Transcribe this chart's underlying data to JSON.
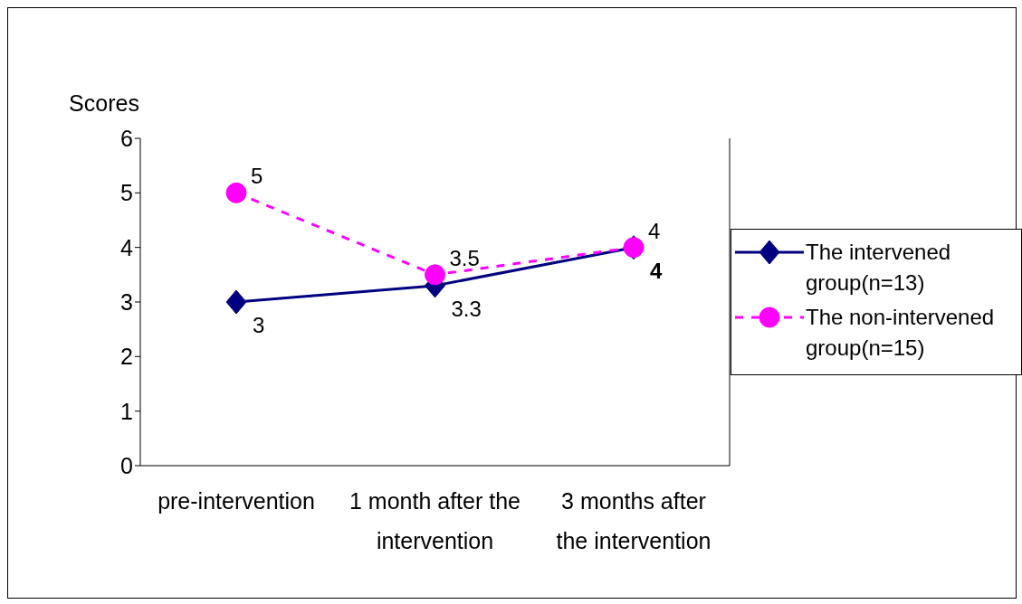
{
  "chart_data": {
    "type": "line",
    "ylabel": "Scores",
    "categories": [
      "pre-intervention",
      "1 month after the intervention",
      "3 months after the intervention"
    ],
    "series": [
      {
        "name": "The intervened group(n=13)",
        "color": "#000080",
        "values": [
          3,
          3.3,
          4
        ],
        "marker": "diamond",
        "line_style": "solid"
      },
      {
        "name": "The non-intervened group(n=15)",
        "color": "#ff00ff",
        "values": [
          5,
          3.5,
          4
        ],
        "marker": "circle",
        "line_style": "dashed"
      }
    ],
    "ylim": [
      0,
      6
    ],
    "yticks": [
      0,
      1,
      2,
      3,
      4,
      5,
      6
    ],
    "grid": false,
    "legend": "right",
    "data_labels": true
  }
}
